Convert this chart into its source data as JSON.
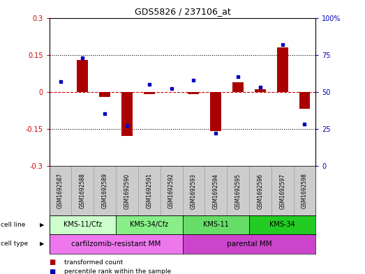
{
  "title": "GDS5826 / 237106_at",
  "samples": [
    "GSM1692587",
    "GSM1692588",
    "GSM1692589",
    "GSM1692590",
    "GSM1692591",
    "GSM1692592",
    "GSM1692593",
    "GSM1692594",
    "GSM1692595",
    "GSM1692596",
    "GSM1692597",
    "GSM1692598"
  ],
  "transformed_count": [
    0.0,
    0.13,
    -0.02,
    -0.18,
    -0.01,
    0.0,
    -0.01,
    -0.16,
    0.04,
    0.01,
    0.18,
    -0.07
  ],
  "percentile_rank": [
    57,
    73,
    35,
    27,
    55,
    52,
    58,
    22,
    60,
    53,
    82,
    28
  ],
  "bar_color": "#aa0000",
  "dot_color": "#0000bb",
  "ylim_left": [
    -0.3,
    0.3
  ],
  "ylim_right": [
    0,
    100
  ],
  "yticks_left": [
    -0.3,
    -0.15,
    0.0,
    0.15,
    0.3
  ],
  "yticks_right": [
    0,
    25,
    50,
    75,
    100
  ],
  "hlines_dotted": [
    0.15,
    -0.15
  ],
  "hline_zero": 0.0,
  "cell_line_groups": [
    {
      "label": "KMS-11/Cfz",
      "start": 0,
      "end": 3,
      "color": "#ccffcc"
    },
    {
      "label": "KMS-34/Cfz",
      "start": 3,
      "end": 6,
      "color": "#88ee88"
    },
    {
      "label": "KMS-11",
      "start": 6,
      "end": 9,
      "color": "#66dd66"
    },
    {
      "label": "KMS-34",
      "start": 9,
      "end": 12,
      "color": "#22cc22"
    }
  ],
  "cell_type_groups": [
    {
      "label": "carfilzomib-resistant MM",
      "start": 0,
      "end": 6,
      "color": "#ee77ee"
    },
    {
      "label": "parental MM",
      "start": 6,
      "end": 12,
      "color": "#cc44cc"
    }
  ],
  "legend_items": [
    {
      "label": "transformed count",
      "color": "#aa0000"
    },
    {
      "label": "percentile rank within the sample",
      "color": "#0000bb"
    }
  ],
  "background_color": "#ffffff",
  "sample_bg_color": "#cccccc",
  "sample_border_color": "#999999"
}
